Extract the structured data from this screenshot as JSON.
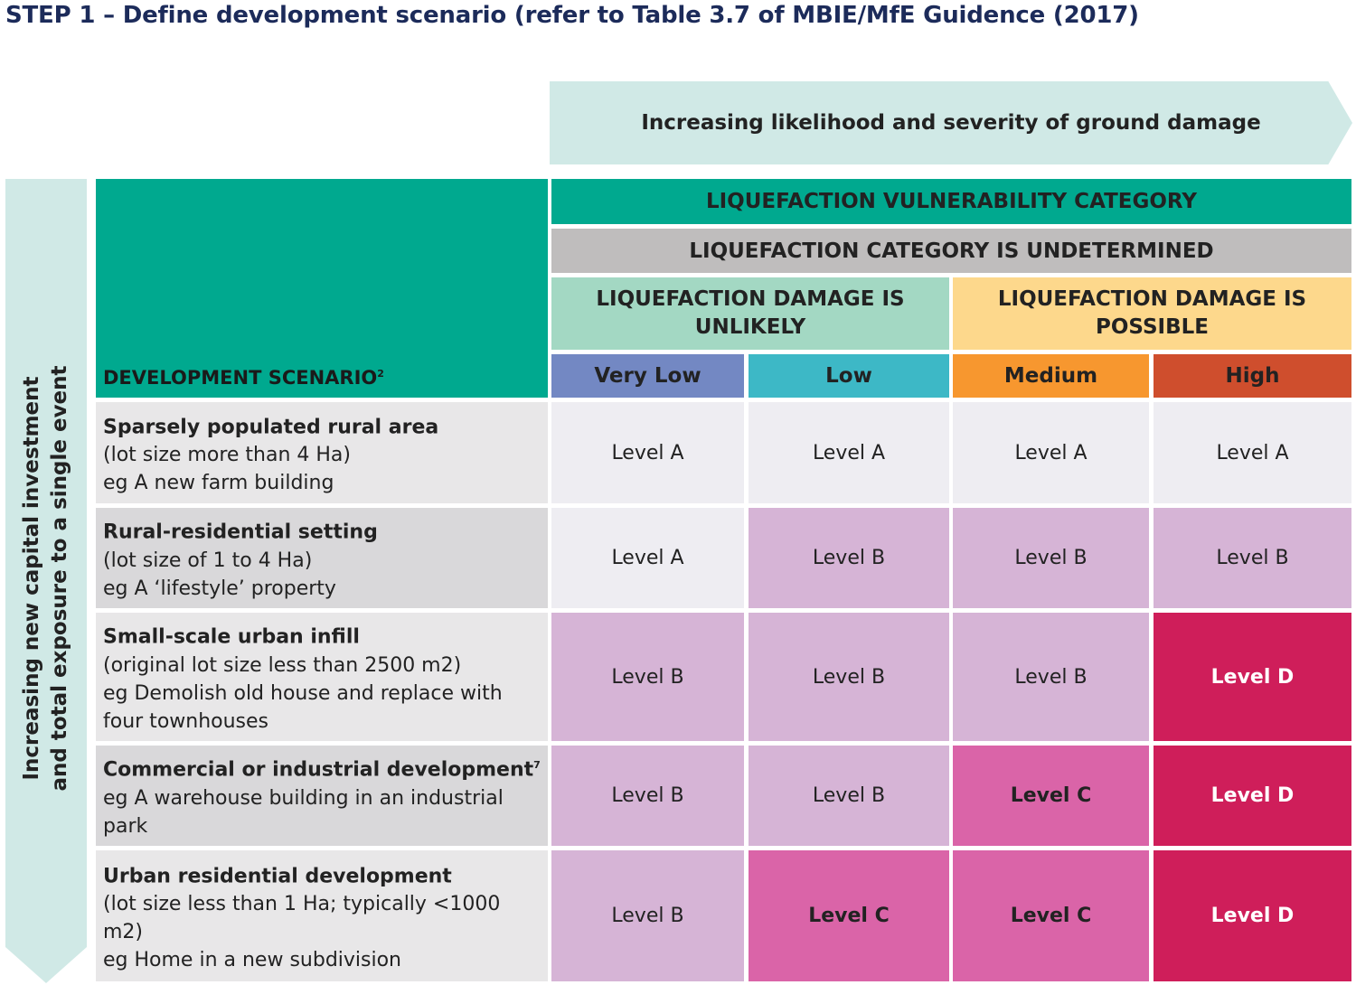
{
  "title": "STEP 1 – Define development scenario (refer to Table 3.7 of MBIE/MfE Guidence (2017)",
  "horizontal_arrow": "Increasing likelihood and severity of ground damage",
  "vertical_arrow": {
    "line1": "Increasing new capital investment",
    "line2": "and total exposure to a single event"
  },
  "header": {
    "vulnerability_category": "LIQUEFACTION VULNERABILITY CATEGORY",
    "undetermined": "LIQUEFACTION CATEGORY IS UNDETERMINED",
    "unlikely": "LIQUEFACTION DAMAGE IS UNLIKELY",
    "possible": "LIQUEFACTION DAMAGE IS POSSIBLE",
    "dev_scenario": "DEVELOPMENT SCENARIO",
    "dev_scenario_sup": "2",
    "columns": [
      "Very Low",
      "Low",
      "Medium",
      "High"
    ]
  },
  "colors": {
    "teal": "#00a98f",
    "grey": "#bfbdbd",
    "unlikely": "#a3d8c3",
    "possible": "#fdd88c",
    "very_low": "#7388c3",
    "low": "#3db8c6",
    "medium": "#f7972f",
    "high": "#cf4e2d",
    "level_a": "#eeedf2",
    "level_b": "#d6b4d6",
    "level_c": "#da64a8",
    "level_d": "#cf1e5a"
  },
  "rows": [
    {
      "title": "Sparsely populated rural area",
      "sup": "",
      "lines": [
        "(lot size more than 4 Ha)",
        "eg A new farm building"
      ],
      "levels": [
        "Level A",
        "Level A",
        "Level A",
        "Level A"
      ]
    },
    {
      "title": "Rural-residential setting",
      "sup": "",
      "lines": [
        "(lot size of 1 to 4 Ha)",
        "eg A ‘lifestyle’ property"
      ],
      "levels": [
        "Level A",
        "Level B",
        "Level B",
        "Level B"
      ]
    },
    {
      "title": "Small-scale urban infill",
      "sup": "",
      "lines": [
        "(original lot size less than 2500 m2)",
        "eg Demolish old house and replace with four townhouses"
      ],
      "levels": [
        "Level B",
        "Level B",
        "Level B",
        "Level D"
      ]
    },
    {
      "title": "Commercial or industrial development",
      "sup": "7",
      "lines": [
        "eg A warehouse building in an industrial park"
      ],
      "levels": [
        "Level B",
        "Level B",
        "Level C",
        "Level D"
      ]
    },
    {
      "title": "Urban residential development",
      "sup": "",
      "lines": [
        "(lot size less than 1 Ha; typically <1000 m2)",
        "eg Home in a new subdivision"
      ],
      "levels": [
        "Level B",
        "Level C",
        "Level C",
        "Level D"
      ]
    }
  ]
}
